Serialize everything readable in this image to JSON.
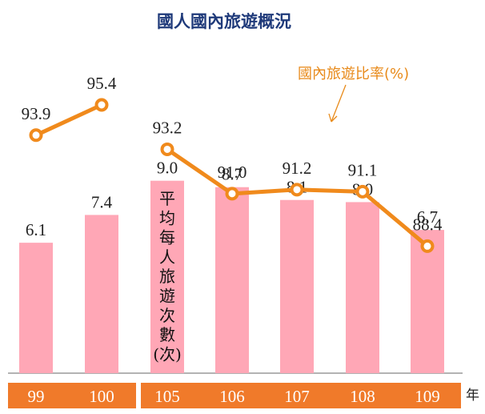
{
  "chart_data": {
    "type": "bar",
    "title": "國人國內旅遊概況",
    "categories": [
      "99",
      "100",
      "105",
      "106",
      "107",
      "108",
      "109"
    ],
    "x_unit": "年",
    "series": [
      {
        "name": "平均每人旅遊次數(次)",
        "type": "bar",
        "values": [
          6.1,
          7.4,
          9.0,
          8.7,
          8.1,
          8.0,
          6.7
        ],
        "color": "#ffa7b6"
      },
      {
        "name": "國內旅遊比率(%)",
        "type": "line",
        "values": [
          93.9,
          95.4,
          93.2,
          91.0,
          91.2,
          91.1,
          88.4
        ],
        "color": "#f08a1c"
      }
    ],
    "bar_label_chars": [
      "平",
      "均",
      "每",
      "人",
      "旅",
      "遊",
      "次",
      "數",
      "(次)"
    ],
    "line_groups": [
      [
        0,
        1
      ],
      [
        2,
        3,
        4,
        5,
        6
      ]
    ],
    "axis_group_colors": {
      "tick_box": "#f07a2a",
      "tick_text": "#ffffff"
    }
  }
}
